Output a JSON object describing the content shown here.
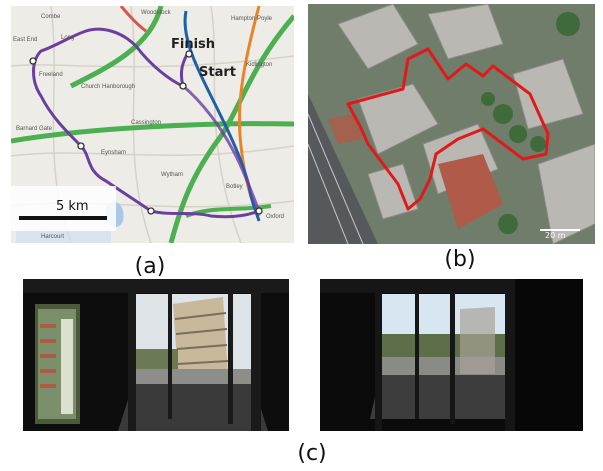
{
  "panels": {
    "a": {
      "caption": "(a)",
      "finish_label": "Finish",
      "start_label": "Start",
      "scale_label": "5 km",
      "place_labels": [
        "Combe",
        "East End",
        "Long",
        "Freeland",
        "Church Hanborough",
        "Cassington",
        "Eynsham",
        "Barnard Gate",
        "Wytham",
        "Oxford",
        "Harcourt",
        "Botley",
        "Woodstock",
        "Kidlington",
        "Hampton Poyle"
      ],
      "colors": {
        "route": "#6a3fa0",
        "motorway_green": "#4caf50",
        "road_orange": "#e8832a",
        "rail_blue": "#1f5fa8",
        "background": "#eeece6"
      }
    },
    "b": {
      "caption": "(b)",
      "scale_label": "20 m",
      "colors": {
        "route": "#e01a1a"
      }
    },
    "c": {
      "caption": "(c)"
    }
  }
}
